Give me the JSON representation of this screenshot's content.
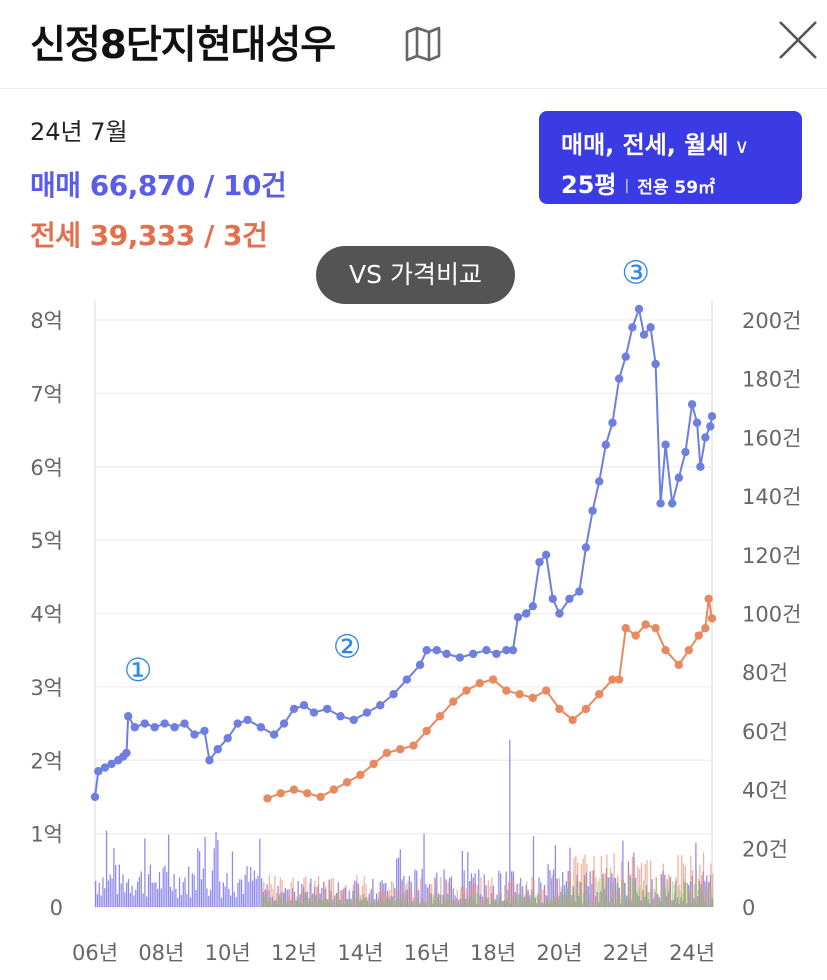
{
  "header": {
    "apartment_name": "신정8단지현대성우",
    "map_icon": "map-icon",
    "close_icon": "close-icon"
  },
  "summary": {
    "period": "24년 7월",
    "sale": "매매 66,870 / 10건",
    "jeonse": "전세 39,333 / 3건"
  },
  "filter": {
    "types": "매매, 전세, 월세",
    "chevron": "∨",
    "size": "25평",
    "separator": "|",
    "area": "전용 59㎡",
    "bg_color": "#3b3be6"
  },
  "vs_button": {
    "label": "VS 가격비교"
  },
  "chart_data": {
    "type": "line",
    "x_tick_labels": [
      "06년",
      "08년",
      "10년",
      "12년",
      "14년",
      "16년",
      "18년",
      "20년",
      "22년",
      "24년"
    ],
    "y_left_tick_labels": [
      "0",
      "1억",
      "2억",
      "3억",
      "4억",
      "5억",
      "6억",
      "7억",
      "8억"
    ],
    "y_left_range": [
      0,
      8
    ],
    "y_left_unit": "억",
    "y_right_tick_labels": [
      "0",
      "20건",
      "40건",
      "60건",
      "80건",
      "100건",
      "120건",
      "140건",
      "160건",
      "180건",
      "200건"
    ],
    "y_right_range": [
      0,
      200
    ],
    "x_range": [
      2006,
      2024.6
    ],
    "grid": true,
    "colors": {
      "sale": "#6f7fe0",
      "jeonse": "#e98a5e",
      "sale_volume": "#6a64e6",
      "jeonse_volume": "#ea8a70",
      "wolse_volume": "#7cc85c",
      "marker": "#2f87e8"
    },
    "series": [
      {
        "values_unit": "억",
        "points": [
          [
            2006.0,
            1.5
          ],
          [
            2006.1,
            1.85
          ],
          [
            2006.3,
            1.9
          ],
          [
            2006.5,
            1.95
          ],
          [
            2006.7,
            2.0
          ],
          [
            2006.85,
            2.05
          ],
          [
            2006.95,
            2.1
          ],
          [
            2007.0,
            2.6
          ],
          [
            2007.2,
            2.45
          ],
          [
            2007.5,
            2.5
          ],
          [
            2007.8,
            2.45
          ],
          [
            2008.1,
            2.5
          ],
          [
            2008.4,
            2.45
          ],
          [
            2008.7,
            2.5
          ],
          [
            2009.0,
            2.35
          ],
          [
            2009.3,
            2.4
          ],
          [
            2009.45,
            2.0
          ],
          [
            2009.7,
            2.15
          ],
          [
            2010.0,
            2.3
          ],
          [
            2010.3,
            2.5
          ],
          [
            2010.6,
            2.55
          ],
          [
            2011.0,
            2.45
          ],
          [
            2011.4,
            2.35
          ],
          [
            2011.7,
            2.5
          ],
          [
            2012.0,
            2.7
          ],
          [
            2012.3,
            2.75
          ],
          [
            2012.6,
            2.65
          ],
          [
            2013.0,
            2.7
          ],
          [
            2013.4,
            2.6
          ],
          [
            2013.8,
            2.55
          ],
          [
            2014.2,
            2.65
          ],
          [
            2014.6,
            2.75
          ],
          [
            2015.0,
            2.9
          ],
          [
            2015.4,
            3.1
          ],
          [
            2015.8,
            3.3
          ],
          [
            2016.0,
            3.5
          ],
          [
            2016.3,
            3.5
          ],
          [
            2016.6,
            3.45
          ],
          [
            2017.0,
            3.4
          ],
          [
            2017.4,
            3.45
          ],
          [
            2017.8,
            3.5
          ],
          [
            2018.1,
            3.45
          ],
          [
            2018.4,
            3.5
          ],
          [
            2018.6,
            3.5
          ],
          [
            2018.75,
            3.95
          ],
          [
            2019.0,
            4.0
          ],
          [
            2019.2,
            4.1
          ],
          [
            2019.4,
            4.7
          ],
          [
            2019.6,
            4.8
          ],
          [
            2019.8,
            4.2
          ],
          [
            2020.0,
            4.0
          ],
          [
            2020.3,
            4.2
          ],
          [
            2020.6,
            4.3
          ],
          [
            2020.8,
            4.9
          ],
          [
            2021.0,
            5.4
          ],
          [
            2021.2,
            5.8
          ],
          [
            2021.4,
            6.3
          ],
          [
            2021.6,
            6.6
          ],
          [
            2021.8,
            7.2
          ],
          [
            2022.0,
            7.5
          ],
          [
            2022.2,
            7.9
          ],
          [
            2022.4,
            8.15
          ],
          [
            2022.55,
            7.8
          ],
          [
            2022.75,
            7.9
          ],
          [
            2022.9,
            7.4
          ],
          [
            2023.05,
            5.5
          ],
          [
            2023.2,
            6.3
          ],
          [
            2023.4,
            5.5
          ],
          [
            2023.6,
            5.85
          ],
          [
            2023.8,
            6.2
          ],
          [
            2024.0,
            6.85
          ],
          [
            2024.15,
            6.6
          ],
          [
            2024.25,
            6.0
          ],
          [
            2024.4,
            6.4
          ],
          [
            2024.55,
            6.55
          ],
          [
            2024.6,
            6.687
          ]
        ]
      },
      {
        "values_unit": "억",
        "points": [
          [
            2011.2,
            1.48
          ],
          [
            2011.6,
            1.55
          ],
          [
            2012.0,
            1.6
          ],
          [
            2012.4,
            1.55
          ],
          [
            2012.8,
            1.5
          ],
          [
            2013.2,
            1.6
          ],
          [
            2013.6,
            1.7
          ],
          [
            2014.0,
            1.8
          ],
          [
            2014.4,
            1.95
          ],
          [
            2014.8,
            2.1
          ],
          [
            2015.2,
            2.15
          ],
          [
            2015.6,
            2.2
          ],
          [
            2016.0,
            2.4
          ],
          [
            2016.4,
            2.6
          ],
          [
            2016.8,
            2.8
          ],
          [
            2017.2,
            2.95
          ],
          [
            2017.6,
            3.05
          ],
          [
            2018.0,
            3.1
          ],
          [
            2018.4,
            2.95
          ],
          [
            2018.8,
            2.9
          ],
          [
            2019.2,
            2.85
          ],
          [
            2019.6,
            2.95
          ],
          [
            2020.0,
            2.7
          ],
          [
            2020.4,
            2.55
          ],
          [
            2020.8,
            2.7
          ],
          [
            2021.2,
            2.9
          ],
          [
            2021.6,
            3.1
          ],
          [
            2021.8,
            3.1
          ],
          [
            2022.0,
            3.8
          ],
          [
            2022.3,
            3.7
          ],
          [
            2022.6,
            3.85
          ],
          [
            2022.9,
            3.8
          ],
          [
            2023.2,
            3.5
          ],
          [
            2023.6,
            3.3
          ],
          [
            2023.9,
            3.5
          ],
          [
            2024.2,
            3.7
          ],
          [
            2024.4,
            3.8
          ],
          [
            2024.5,
            4.2
          ],
          [
            2024.6,
            3.933
          ]
        ]
      }
    ],
    "volume_values_unit": "건",
    "peak_volume_2018": 57,
    "markers": [
      "①",
      "②",
      "③"
    ]
  }
}
